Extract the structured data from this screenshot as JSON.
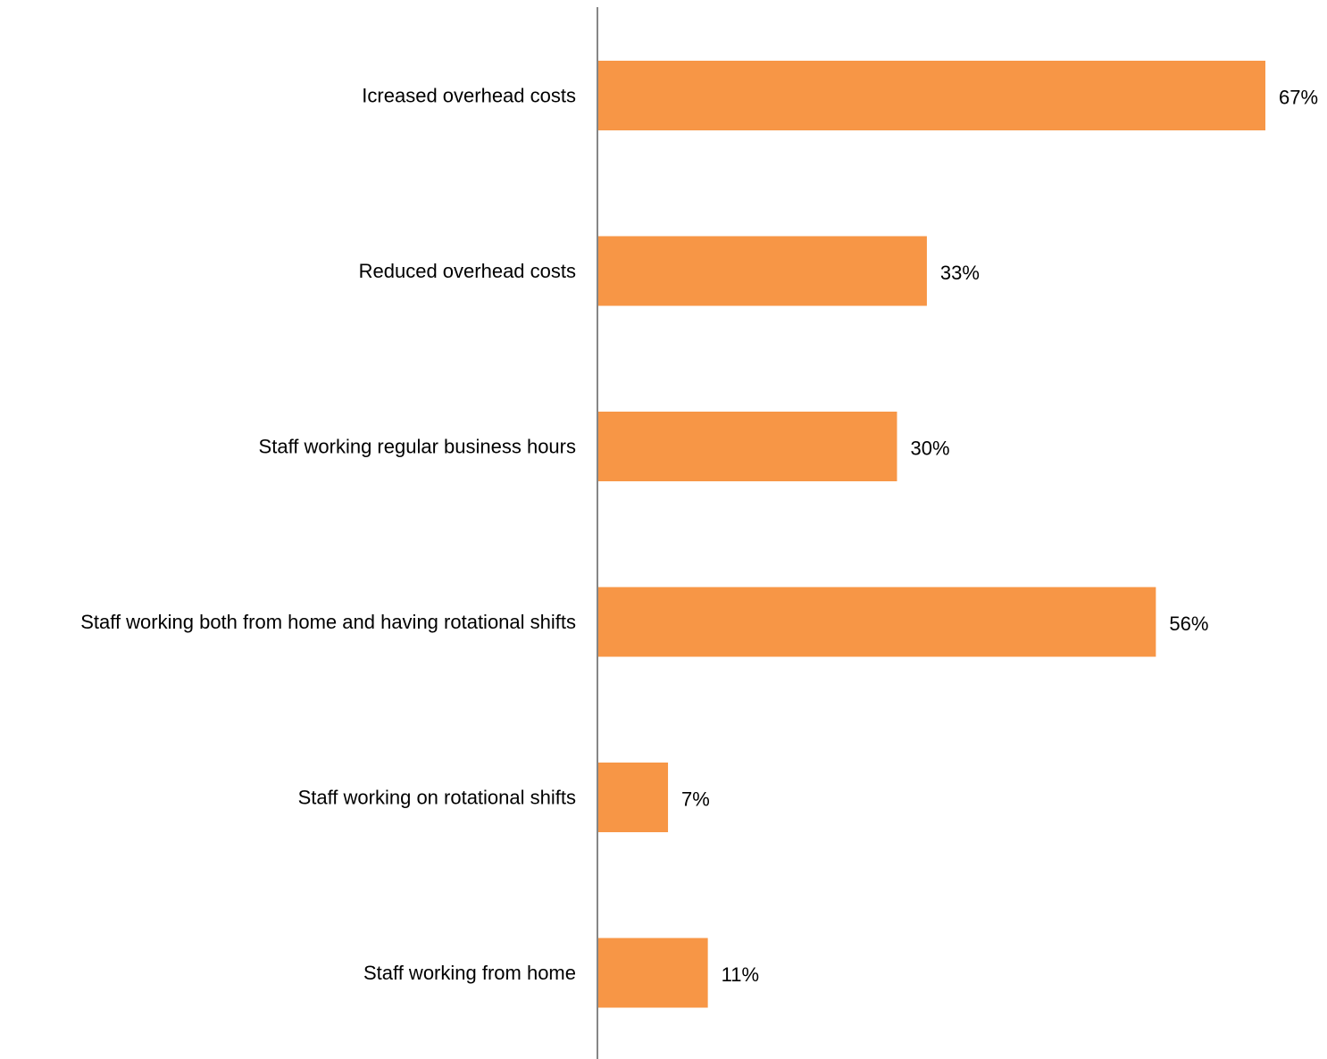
{
  "chart_data": {
    "type": "bar",
    "orientation": "horizontal",
    "categories": [
      "Icreased overhead costs",
      "Reduced overhead costs",
      "Staff working regular business hours",
      "Staff working both from home and having rotational shifts",
      "Staff working on rotational shifts",
      "Staff working from home"
    ],
    "values": [
      67,
      33,
      30,
      56,
      7,
      11
    ],
    "value_labels": [
      "67%",
      "33%",
      "30%",
      "56%",
      "7%",
      "11%"
    ],
    "unit": "%",
    "xlim": [
      0,
      67
    ],
    "grid": false,
    "legend": "none",
    "bar_color": "#F79646",
    "axis_color": "#868686"
  }
}
